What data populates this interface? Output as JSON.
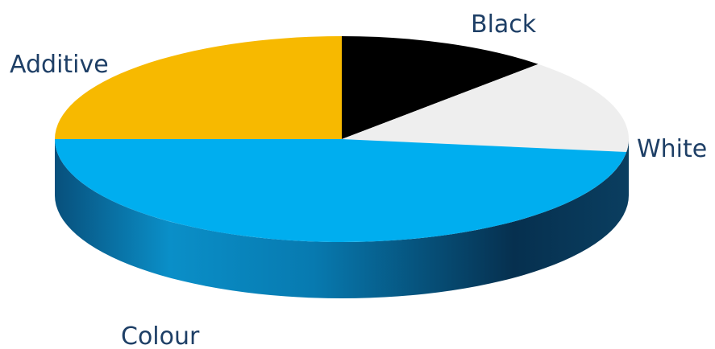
{
  "chart_data": {
    "type": "pie",
    "style": "3d",
    "title": "",
    "start_angle_deg": -90,
    "direction": "clockwise",
    "slices": [
      {
        "label": "Black",
        "value": 12,
        "color": "#000000"
      },
      {
        "label": "White",
        "value": 15,
        "color": "#eeeeee"
      },
      {
        "label": "Colour",
        "value": 48,
        "color": "#00aeef"
      },
      {
        "label": "Additive",
        "value": 25,
        "color": "#f7b900"
      }
    ],
    "colors": {
      "label_text": "#1e3f66",
      "side_light": "#0a8fc8",
      "side_dark": "#06304f"
    }
  }
}
